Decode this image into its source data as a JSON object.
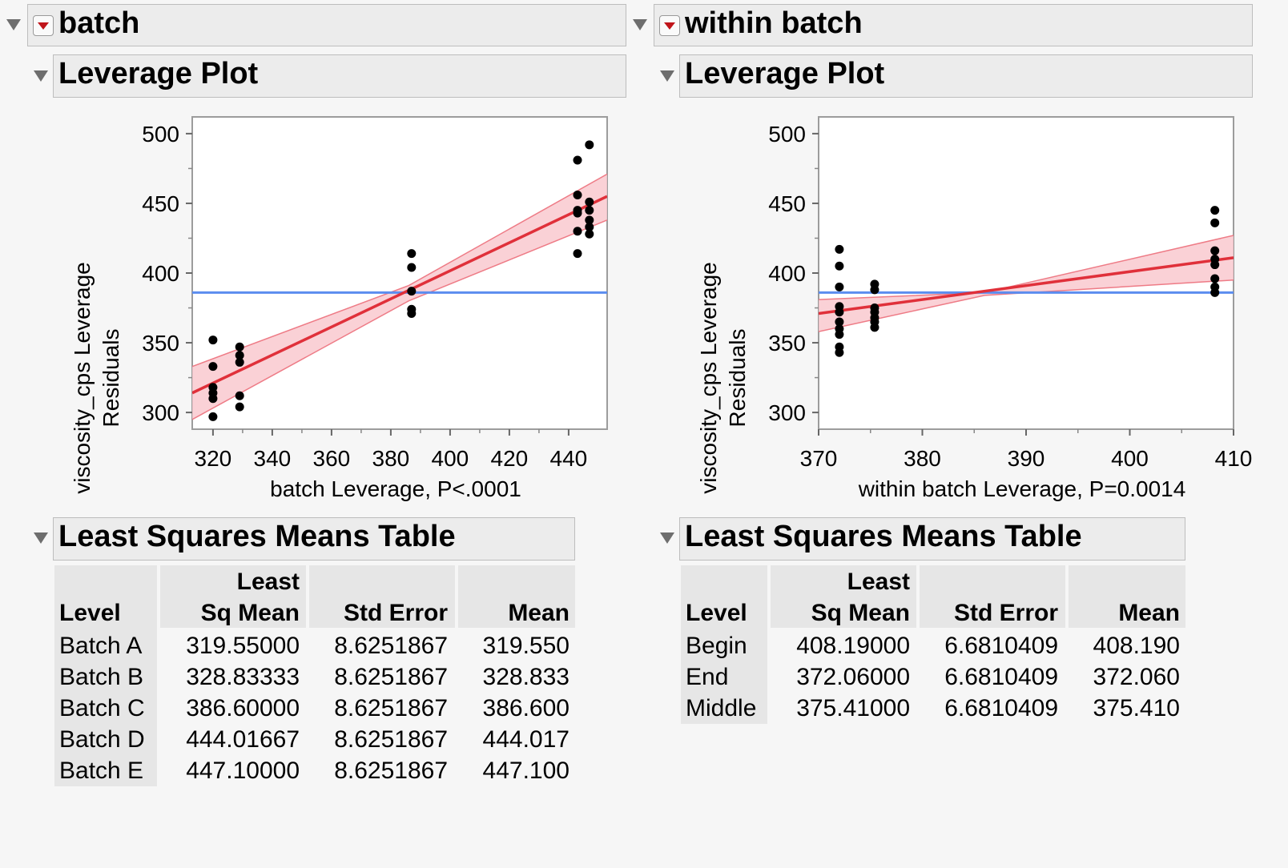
{
  "panels": [
    {
      "title": "batch",
      "plot_title": "Leverage Plot",
      "table_title": "Least Squares Means Table",
      "table": {
        "headers": [
          "Level",
          "Least\nSq Mean",
          "Std Error",
          "Mean"
        ],
        "header_line1": [
          "",
          "Least",
          "",
          ""
        ],
        "header_line2": [
          "Level",
          "Sq Mean",
          "Std Error",
          "Mean"
        ],
        "rows": [
          [
            "Batch A",
            "319.55000",
            "8.6251867",
            "319.550"
          ],
          [
            "Batch B",
            "328.83333",
            "8.6251867",
            "328.833"
          ],
          [
            "Batch C",
            "386.60000",
            "8.6251867",
            "386.600"
          ],
          [
            "Batch D",
            "444.01667",
            "8.6251867",
            "444.017"
          ],
          [
            "Batch E",
            "447.10000",
            "8.6251867",
            "447.100"
          ]
        ]
      }
    },
    {
      "title": "within batch",
      "plot_title": "Leverage Plot",
      "table_title": "Least Squares Means Table",
      "table": {
        "header_line1": [
          "",
          "Least",
          "",
          ""
        ],
        "header_line2": [
          "Level",
          "Sq Mean",
          "Std Error",
          "Mean"
        ],
        "rows": [
          [
            "Begin",
            "408.19000",
            "6.6810409",
            "408.190"
          ],
          [
            "End",
            "372.06000",
            "6.6810409",
            "372.060"
          ],
          [
            "Middle",
            "375.41000",
            "6.6810409",
            "375.410"
          ]
        ]
      }
    }
  ],
  "colors": {
    "fit_line": "#e0303a",
    "confidence_band": "#f9c9cf",
    "mean_line": "#5b8def",
    "points": "#000000"
  },
  "chart_data": [
    {
      "type": "scatter",
      "title": "",
      "xlabel": "batch Leverage, P<.0001",
      "ylabel": "viscosity_cps Leverage Residuals",
      "ylabel_lines": [
        "viscosity_cps Leverage",
        "Residuals"
      ],
      "xlim": [
        313,
        453
      ],
      "ylim": [
        288,
        512
      ],
      "xticks": [
        320,
        340,
        360,
        380,
        400,
        420,
        440
      ],
      "yticks": [
        300,
        350,
        400,
        450,
        500
      ],
      "mean_line_y": 386,
      "fit_line": [
        [
          313,
          314
        ],
        [
          453,
          455
        ]
      ],
      "band_upper": [
        [
          313,
          333
        ],
        [
          386,
          391
        ],
        [
          453,
          471
        ]
      ],
      "band_lower": [
        [
          313,
          295
        ],
        [
          386,
          380
        ],
        [
          453,
          438
        ]
      ],
      "points": [
        [
          320,
          352
        ],
        [
          320,
          333
        ],
        [
          320,
          318
        ],
        [
          320,
          314
        ],
        [
          320,
          310
        ],
        [
          320,
          297
        ],
        [
          329,
          347
        ],
        [
          329,
          341
        ],
        [
          329,
          336
        ],
        [
          329,
          312
        ],
        [
          329,
          304
        ],
        [
          387,
          414
        ],
        [
          387,
          404
        ],
        [
          387,
          387
        ],
        [
          387,
          374
        ],
        [
          387,
          371
        ],
        [
          443,
          481
        ],
        [
          443,
          456
        ],
        [
          443,
          445
        ],
        [
          443,
          443
        ],
        [
          443,
          430
        ],
        [
          443,
          414
        ],
        [
          447,
          492
        ],
        [
          447,
          451
        ],
        [
          447,
          445
        ],
        [
          447,
          438
        ],
        [
          447,
          433
        ],
        [
          447,
          428
        ]
      ]
    },
    {
      "type": "scatter",
      "title": "",
      "xlabel": "within batch Leverage, P=0.0014",
      "ylabel": "viscosity_cps Leverage Residuals",
      "ylabel_lines": [
        "viscosity_cps Leverage",
        "Residuals"
      ],
      "xlim": [
        370,
        410
      ],
      "ylim": [
        288,
        512
      ],
      "xticks": [
        370,
        380,
        390,
        400,
        410
      ],
      "yticks": [
        300,
        350,
        400,
        450,
        500
      ],
      "mean_line_y": 386,
      "fit_line": [
        [
          370,
          371
        ],
        [
          410,
          411
        ]
      ],
      "band_upper": [
        [
          370,
          381
        ],
        [
          386,
          386
        ],
        [
          410,
          427
        ]
      ],
      "band_lower": [
        [
          370,
          358
        ],
        [
          386,
          384
        ],
        [
          410,
          395
        ]
      ],
      "points": [
        [
          372,
          417
        ],
        [
          372,
          405
        ],
        [
          372,
          390
        ],
        [
          372,
          376
        ],
        [
          372,
          372
        ],
        [
          372,
          365
        ],
        [
          372,
          360
        ],
        [
          372,
          356
        ],
        [
          372,
          347
        ],
        [
          372,
          343
        ],
        [
          375.4,
          392
        ],
        [
          375.4,
          388
        ],
        [
          375.4,
          375
        ],
        [
          375.4,
          372
        ],
        [
          375.4,
          368
        ],
        [
          375.4,
          365
        ],
        [
          375.4,
          361
        ],
        [
          408.2,
          445
        ],
        [
          408.2,
          436
        ],
        [
          408.2,
          416
        ],
        [
          408.2,
          410
        ],
        [
          408.2,
          406
        ],
        [
          408.2,
          396
        ],
        [
          408.2,
          390
        ],
        [
          408.2,
          386
        ]
      ]
    }
  ]
}
